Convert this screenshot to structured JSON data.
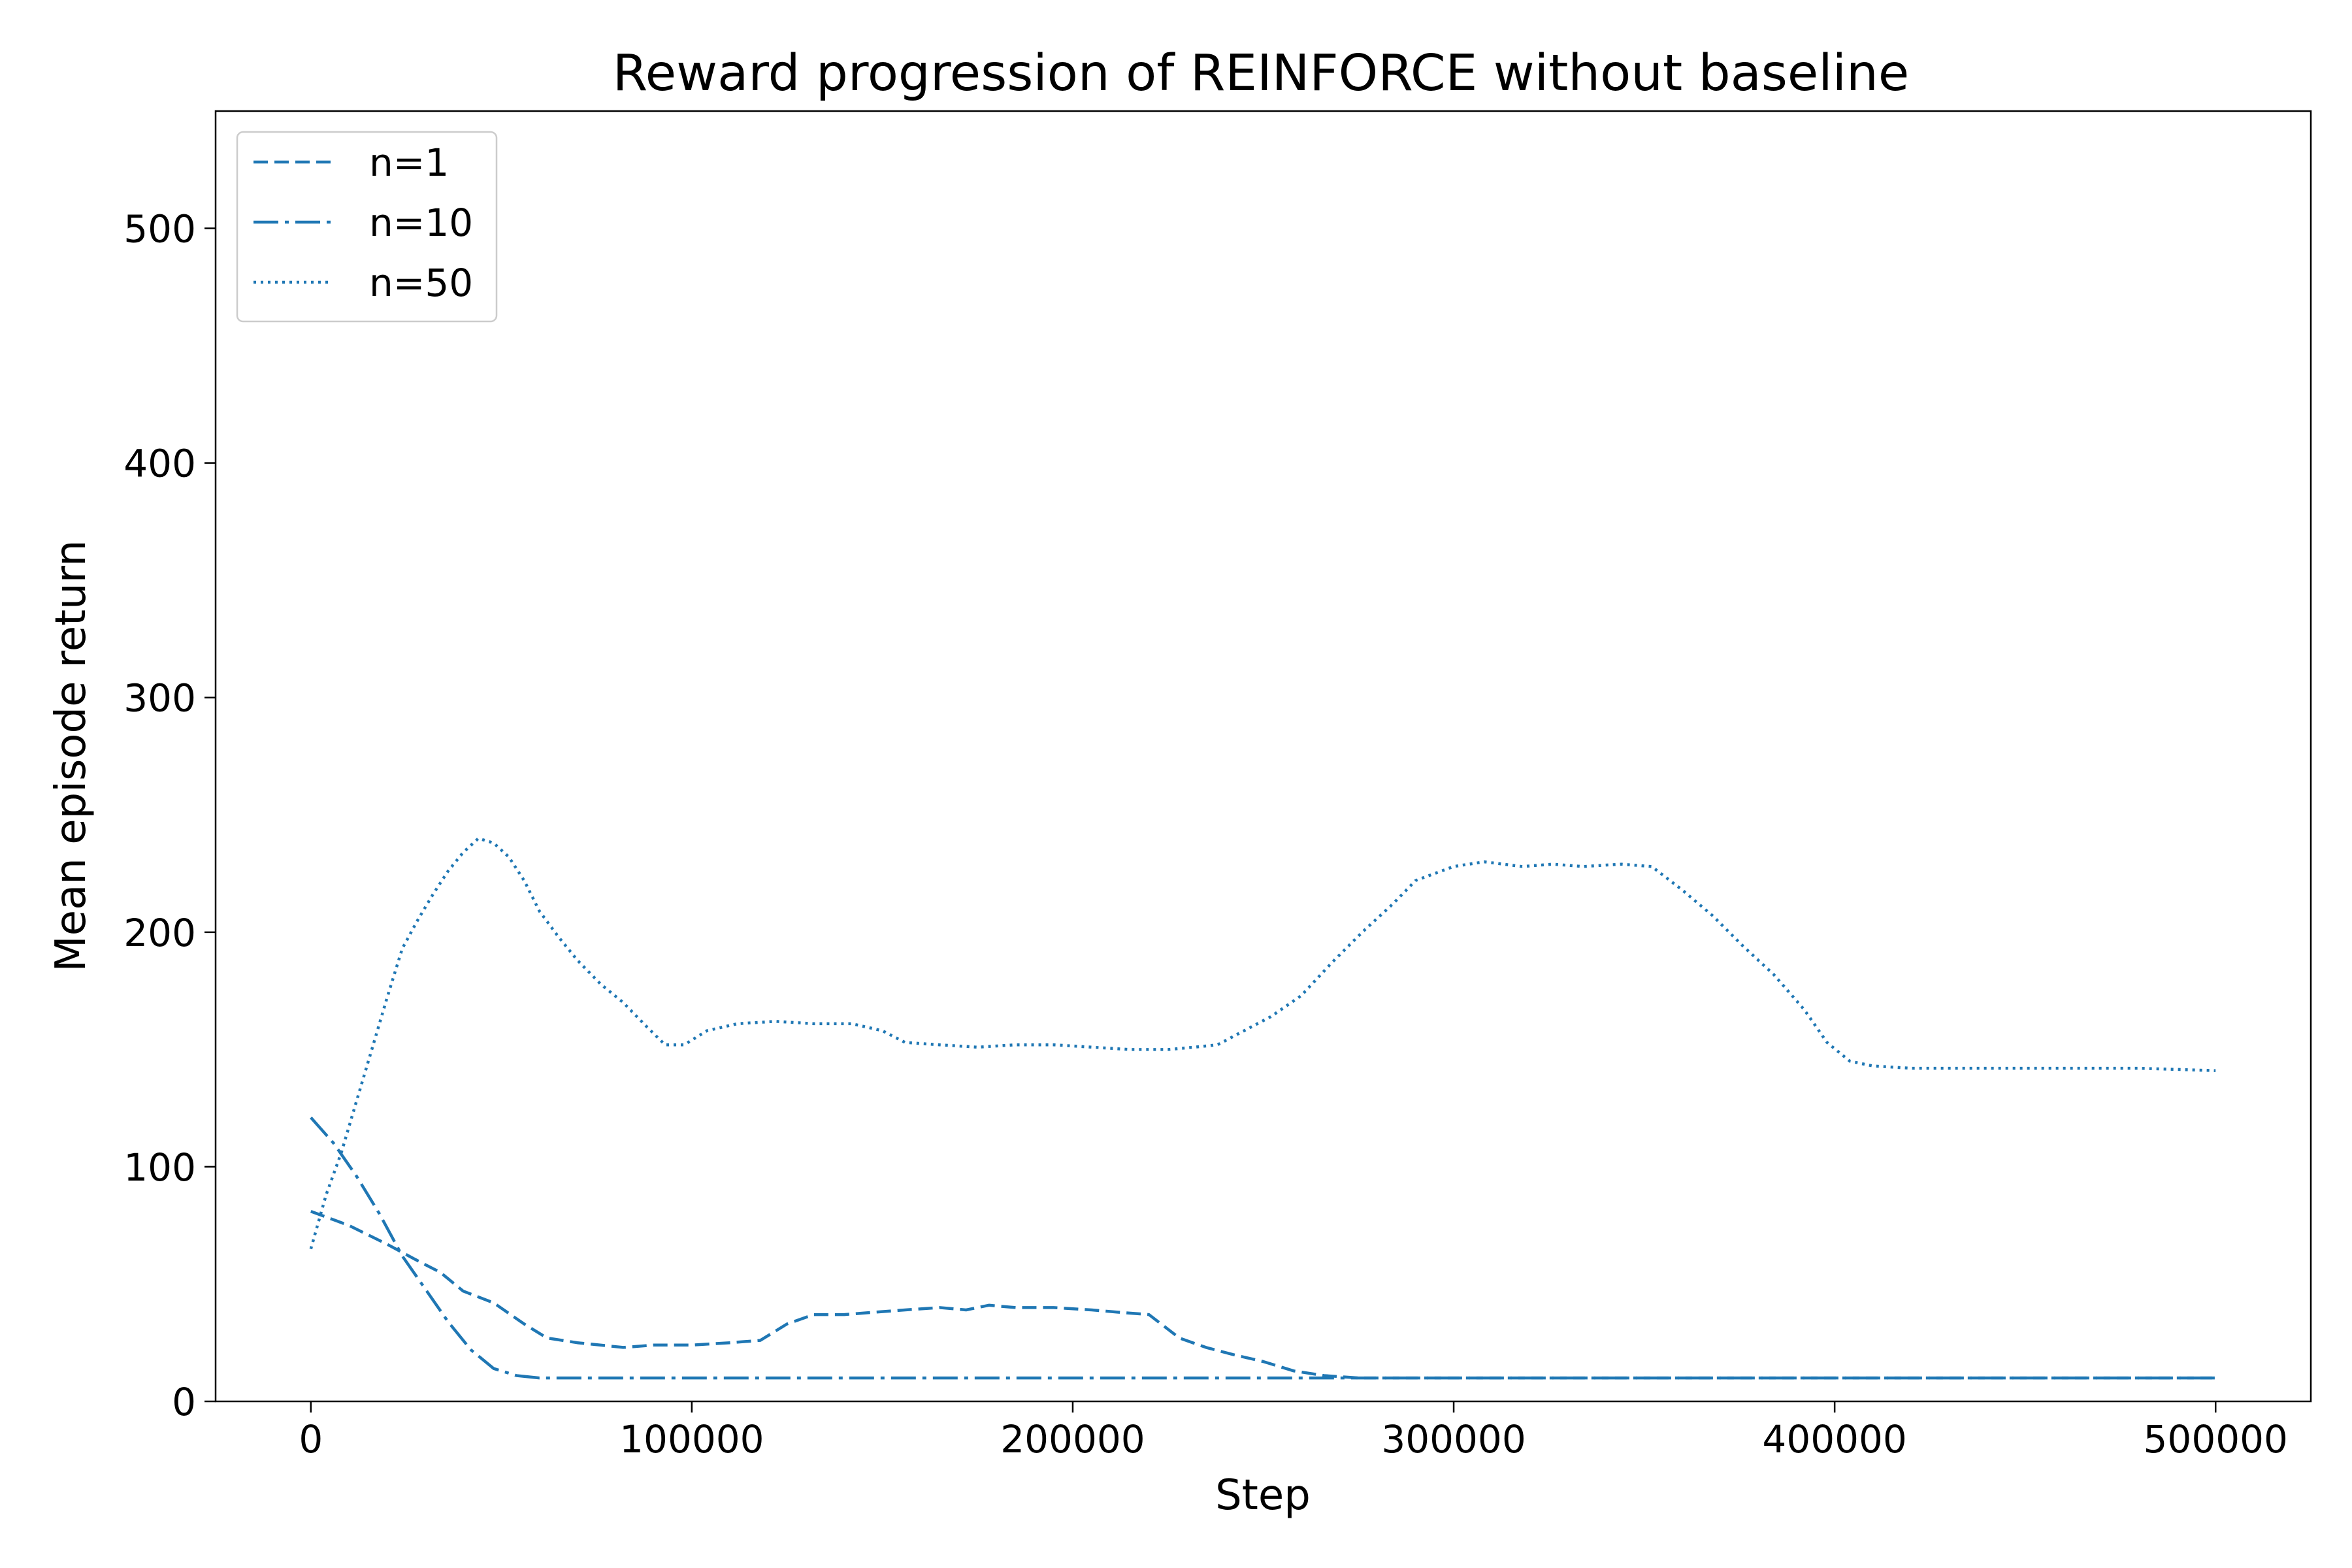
{
  "chart_data": {
    "type": "line",
    "title": "Reward progression of REINFORCE without baseline",
    "xlabel": "Step",
    "ylabel": "Mean episode return",
    "xlim": [
      -25000,
      525000
    ],
    "ylim": [
      0,
      550
    ],
    "xticks": [
      0,
      100000,
      200000,
      300000,
      400000,
      500000
    ],
    "yticks": [
      0,
      100,
      200,
      300,
      400,
      500
    ],
    "grid": false,
    "legend_position": "upper-left",
    "line_color": "#1f77b4",
    "series": [
      {
        "name": "n=1",
        "dash": "dashed",
        "points": [
          [
            0,
            81
          ],
          [
            10000,
            75
          ],
          [
            20000,
            67
          ],
          [
            28000,
            60
          ],
          [
            34000,
            55
          ],
          [
            40000,
            47
          ],
          [
            48000,
            42
          ],
          [
            56000,
            33
          ],
          [
            62000,
            27
          ],
          [
            70000,
            25
          ],
          [
            82000,
            23
          ],
          [
            90000,
            24
          ],
          [
            100000,
            24
          ],
          [
            110000,
            25
          ],
          [
            118000,
            26
          ],
          [
            125000,
            33
          ],
          [
            132000,
            37
          ],
          [
            140000,
            37
          ],
          [
            148000,
            38
          ],
          [
            156000,
            39
          ],
          [
            165000,
            40
          ],
          [
            172000,
            39
          ],
          [
            178000,
            41
          ],
          [
            185000,
            40
          ],
          [
            195000,
            40
          ],
          [
            205000,
            39
          ],
          [
            212000,
            38
          ],
          [
            220000,
            37
          ],
          [
            228000,
            27
          ],
          [
            235000,
            23
          ],
          [
            242000,
            20
          ],
          [
            250000,
            17
          ],
          [
            258000,
            13
          ],
          [
            266000,
            11
          ],
          [
            275000,
            10
          ],
          [
            290000,
            10
          ],
          [
            320000,
            10
          ],
          [
            350000,
            10
          ],
          [
            400000,
            10
          ],
          [
            450000,
            10
          ],
          [
            500000,
            10
          ]
        ]
      },
      {
        "name": "n=10",
        "dash": "dashdot",
        "points": [
          [
            0,
            121
          ],
          [
            6000,
            110
          ],
          [
            12000,
            96
          ],
          [
            18000,
            80
          ],
          [
            24000,
            62
          ],
          [
            30000,
            48
          ],
          [
            36000,
            34
          ],
          [
            42000,
            22
          ],
          [
            48000,
            14
          ],
          [
            54000,
            11
          ],
          [
            60000,
            10
          ],
          [
            80000,
            10
          ],
          [
            120000,
            10
          ],
          [
            200000,
            10
          ],
          [
            300000,
            10
          ],
          [
            400000,
            10
          ],
          [
            500000,
            10
          ]
        ]
      },
      {
        "name": "n=50",
        "dash": "dotted",
        "points": [
          [
            0,
            65
          ],
          [
            4000,
            88
          ],
          [
            8000,
            106
          ],
          [
            12000,
            128
          ],
          [
            16000,
            150
          ],
          [
            20000,
            172
          ],
          [
            24000,
            193
          ],
          [
            28000,
            205
          ],
          [
            32000,
            216
          ],
          [
            36000,
            226
          ],
          [
            40000,
            234
          ],
          [
            44000,
            240
          ],
          [
            48000,
            238
          ],
          [
            52000,
            232
          ],
          [
            56000,
            222
          ],
          [
            60000,
            209
          ],
          [
            65000,
            198
          ],
          [
            70000,
            188
          ],
          [
            76000,
            178
          ],
          [
            82000,
            170
          ],
          [
            88000,
            160
          ],
          [
            93000,
            152
          ],
          [
            98000,
            152
          ],
          [
            104000,
            158
          ],
          [
            112000,
            161
          ],
          [
            122000,
            162
          ],
          [
            132000,
            161
          ],
          [
            142000,
            161
          ],
          [
            150000,
            158
          ],
          [
            156000,
            153
          ],
          [
            165000,
            152
          ],
          [
            175000,
            151
          ],
          [
            185000,
            152
          ],
          [
            195000,
            152
          ],
          [
            205000,
            151
          ],
          [
            215000,
            150
          ],
          [
            225000,
            150
          ],
          [
            232000,
            151
          ],
          [
            238000,
            152
          ],
          [
            245000,
            158
          ],
          [
            252000,
            164
          ],
          [
            260000,
            173
          ],
          [
            268000,
            187
          ],
          [
            276000,
            200
          ],
          [
            284000,
            212
          ],
          [
            290000,
            222
          ],
          [
            295000,
            225
          ],
          [
            300000,
            228
          ],
          [
            308000,
            230
          ],
          [
            318000,
            228
          ],
          [
            326000,
            229
          ],
          [
            334000,
            228
          ],
          [
            344000,
            229
          ],
          [
            352000,
            228
          ],
          [
            360000,
            218
          ],
          [
            368000,
            207
          ],
          [
            376000,
            194
          ],
          [
            384000,
            182
          ],
          [
            392000,
            167
          ],
          [
            398000,
            153
          ],
          [
            404000,
            145
          ],
          [
            410000,
            143
          ],
          [
            420000,
            142
          ],
          [
            440000,
            142
          ],
          [
            460000,
            142
          ],
          [
            480000,
            142
          ],
          [
            500000,
            141
          ]
        ]
      }
    ]
  }
}
